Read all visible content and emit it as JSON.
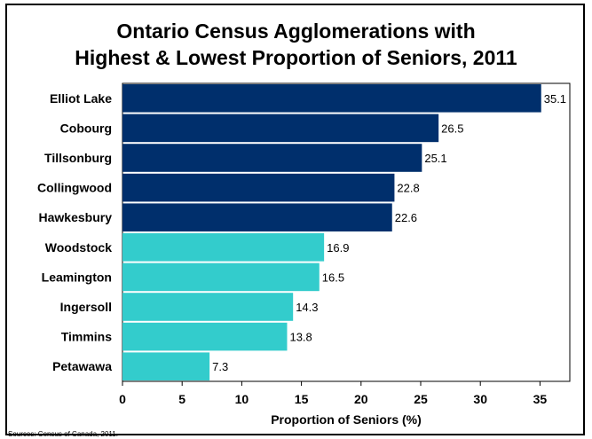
{
  "chart_data": {
    "type": "bar",
    "orientation": "horizontal",
    "title_lines": [
      "Ontario Census Agglomerations with",
      "Highest & Lowest Proportion of Seniors, 2011"
    ],
    "categories": [
      "Elliot Lake",
      "Cobourg",
      "Tillsonburg",
      "Collingwood",
      "Hawkesbury",
      "Woodstock",
      "Leamington",
      "Ingersoll",
      "Timmins",
      "Petawawa"
    ],
    "values": [
      35.1,
      26.5,
      25.1,
      22.8,
      22.6,
      16.9,
      16.5,
      14.3,
      13.8,
      7.3
    ],
    "value_labels": [
      "35.1",
      "26.5",
      "25.1",
      "22.8",
      "22.6",
      "16.9",
      "16.5",
      "14.3",
      "13.8",
      "7.3"
    ],
    "groups": [
      "highest",
      "highest",
      "highest",
      "highest",
      "highest",
      "lowest",
      "lowest",
      "lowest",
      "lowest",
      "lowest"
    ],
    "xlabel": "Proportion of Seniors (%)",
    "ylabel": "",
    "xlim": [
      0,
      37.5
    ],
    "xticks": [
      0,
      5,
      10,
      15,
      20,
      25,
      30,
      35
    ],
    "xtick_labels": [
      "0",
      "5",
      "10",
      "15",
      "20",
      "25",
      "30",
      "35"
    ],
    "grid": false,
    "colors": {
      "highest": "#002F6C",
      "lowest": "#33CCCC"
    },
    "source": "Sources: Census of Canada, 2011."
  }
}
